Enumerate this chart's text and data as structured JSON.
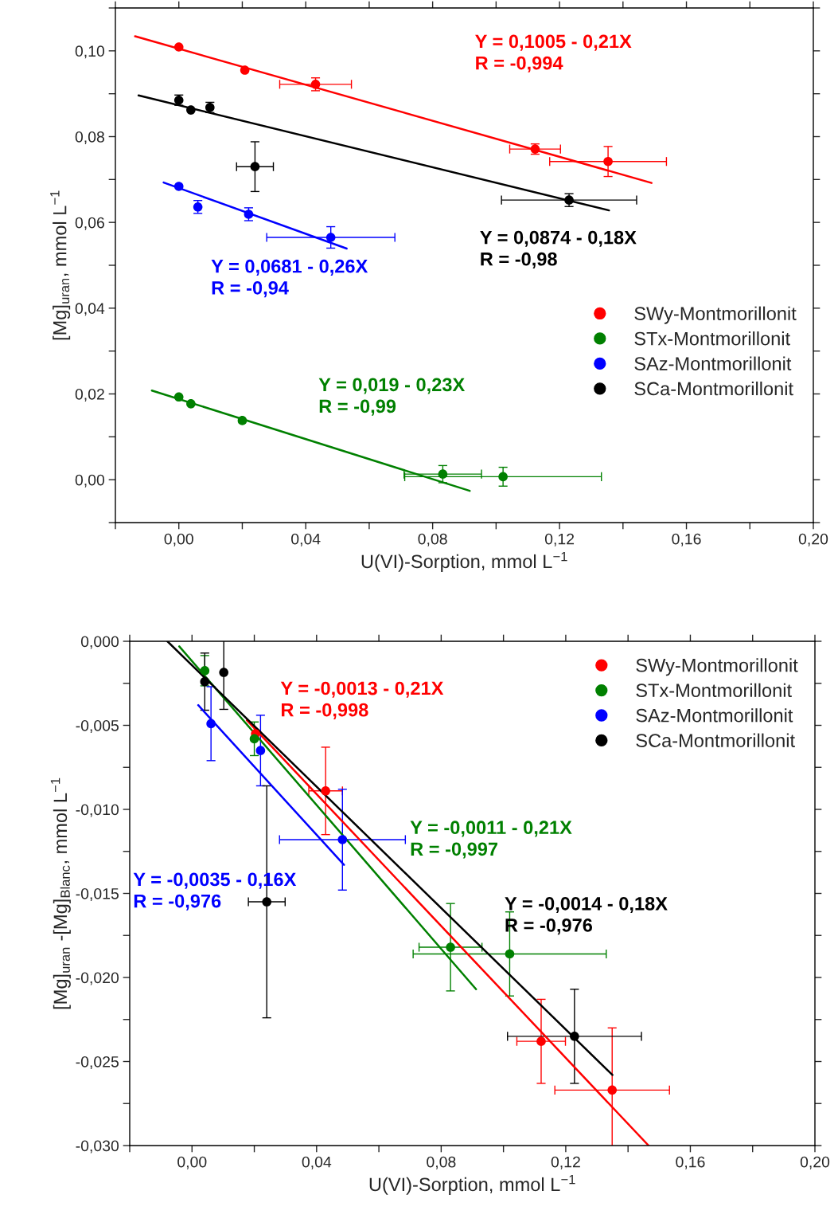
{
  "chart_data": [
    {
      "type": "scatter",
      "xlabel": "U(VI)-Sorption, mmol L$^{−1}$",
      "ylabel": "[Mg]$_{uran}$, mmol L$^{−1}$",
      "xlim": [
        -0.02,
        0.2
      ],
      "ylim": [
        -0.01,
        0.11
      ],
      "xticks": [
        {
          "value": -0.02,
          "label": null
        },
        {
          "value": 0.0,
          "label": "0,00"
        },
        {
          "value": 0.02,
          "label": null
        },
        {
          "value": 0.04,
          "label": "0,04"
        },
        {
          "value": 0.06,
          "label": null
        },
        {
          "value": 0.08,
          "label": "0,08"
        },
        {
          "value": 0.1,
          "label": null
        },
        {
          "value": 0.12,
          "label": "0,12"
        },
        {
          "value": 0.14,
          "label": null
        },
        {
          "value": 0.16,
          "label": "0,16"
        },
        {
          "value": 0.18,
          "label": null
        },
        {
          "value": 0.2,
          "label": "0,20"
        }
      ],
      "yticks": [
        {
          "value": -0.01,
          "label": null
        },
        {
          "value": 0.0,
          "label": "0,00"
        },
        {
          "value": 0.01,
          "label": null
        },
        {
          "value": 0.02,
          "label": "0,02"
        },
        {
          "value": 0.03,
          "label": null
        },
        {
          "value": 0.04,
          "label": "0,04"
        },
        {
          "value": 0.05,
          "label": null
        },
        {
          "value": 0.06,
          "label": "0,06"
        },
        {
          "value": 0.07,
          "label": null
        },
        {
          "value": 0.08,
          "label": "0,08"
        },
        {
          "value": 0.09,
          "label": null
        },
        {
          "value": 0.1,
          "label": "0,10"
        },
        {
          "value": 0.11,
          "label": null
        }
      ],
      "marker": "circle",
      "grid": false,
      "legend": "right",
      "series": [
        {
          "name": "SWy-Montmorillonit",
          "color": "#ff0000",
          "x": [
            0.0,
            0.0208,
            0.0431,
            0.1123,
            0.1353
          ],
          "values": [
            0.1009,
            0.0955,
            0.0922,
            0.0771,
            0.0742
          ],
          "errors": [
            null,
            null,
            0.0015,
            0.0012,
            0.0035
          ],
          "xerrors": [
            null,
            null,
            0.0113,
            0.008,
            0.0184
          ]
        },
        {
          "name": "STx-Montmorillonit",
          "color": "#008000",
          "x": [
            0.0,
            0.0038,
            0.02,
            0.0832,
            0.1022
          ],
          "values": [
            0.0193,
            0.0177,
            0.0138,
            0.0013,
            0.0007
          ],
          "errors": [
            null,
            null,
            null,
            0.002,
            0.0022
          ],
          "xerrors": [
            null,
            null,
            null,
            0.0122,
            0.031
          ]
        },
        {
          "name": "SAz-Montmorillonit",
          "color": "#0000ff",
          "x": [
            0.0,
            0.006,
            0.022,
            0.0479
          ],
          "values": [
            0.0684,
            0.0636,
            0.0619,
            0.0565
          ],
          "errors": [
            null,
            0.0015,
            0.0015,
            0.0025
          ],
          "xerrors": [
            null,
            null,
            null,
            0.0202
          ]
        },
        {
          "name": "SCa-Montmorillonit",
          "color": "#000000",
          "x": [
            0.0,
            0.0038,
            0.0098,
            0.024,
            0.123
          ],
          "values": [
            0.0885,
            0.0862,
            0.0868,
            0.073,
            0.0652
          ],
          "errors": [
            0.0012,
            null,
            0.0012,
            0.0058,
            0.0015
          ],
          "xerrors": [
            null,
            null,
            null,
            0.0058,
            0.0213
          ]
        },
        {
          "type": "line",
          "marker": "none",
          "color": "#ff0000",
          "x": [
            -0.0138,
            0.149
          ],
          "values": [
            0.1034,
            0.0692
          ]
        },
        {
          "type": "line",
          "marker": "none",
          "color": "#008000",
          "x": [
            -0.0085,
            0.0917
          ],
          "values": [
            0.0208,
            -0.0026
          ]
        },
        {
          "type": "line",
          "marker": "none",
          "color": "#0000ff",
          "x": [
            -0.0048,
            0.0529
          ],
          "values": [
            0.0693,
            0.0539
          ]
        },
        {
          "type": "line",
          "marker": "none",
          "color": "#000000",
          "x": [
            -0.0127,
            0.1356
          ],
          "values": [
            0.0896,
            0.0628
          ]
        }
      ],
      "annotations": [
        "Y = 0,1005 - 0,21X\nR = -0,994",
        "Y = 0,019 - 0,23X\nR = -0,99",
        "Y = 0,0681 - 0,26X\nR = -0,94",
        "Y = 0,0874 - 0,18X\nR = -0,98"
      ]
    },
    {
      "type": "scatter",
      "xlabel": "U(VI)-Sorption, mmol L$^{−1}$",
      "ylabel": "[Mg]$_{uran}$ -[Mg]$_{Blanc}$, mmol L$^{−1}$",
      "xlim": [
        -0.02,
        0.2
      ],
      "ylim": [
        -0.03,
        0.0
      ],
      "xticks": [
        {
          "value": -0.02,
          "label": null
        },
        {
          "value": 0.0,
          "label": "0,00"
        },
        {
          "value": 0.02,
          "label": null
        },
        {
          "value": 0.04,
          "label": "0,04"
        },
        {
          "value": 0.06,
          "label": null
        },
        {
          "value": 0.08,
          "label": "0,08"
        },
        {
          "value": 0.1,
          "label": null
        },
        {
          "value": 0.12,
          "label": "0,12"
        },
        {
          "value": 0.14,
          "label": null
        },
        {
          "value": 0.16,
          "label": "0,16"
        },
        {
          "value": 0.18,
          "label": null
        },
        {
          "value": 0.2,
          "label": "0,20"
        }
      ],
      "yticks": [
        {
          "value": -0.03,
          "label": "-0,030"
        },
        {
          "value": -0.0275,
          "label": null
        },
        {
          "value": -0.025,
          "label": "-0,025"
        },
        {
          "value": -0.0225,
          "label": null
        },
        {
          "value": -0.02,
          "label": "-0,020"
        },
        {
          "value": -0.0175,
          "label": null
        },
        {
          "value": -0.015,
          "label": "-0,015"
        },
        {
          "value": -0.0125,
          "label": null
        },
        {
          "value": -0.01,
          "label": "-0,010"
        },
        {
          "value": -0.0075,
          "label": null
        },
        {
          "value": -0.005,
          "label": "-0,005"
        },
        {
          "value": -0.0025,
          "label": null
        },
        {
          "value": 0.0,
          "label": "0,000"
        }
      ],
      "marker": "circle",
      "grid": false,
      "legend": "top right",
      "series": [
        {
          "name": "SWy-Montmorillonit",
          "color": "#ff0000",
          "x": [
            0.0204,
            0.0429,
            0.1121,
            0.1349
          ],
          "values": [
            -0.0055,
            -0.0089,
            -0.0238,
            -0.0267
          ],
          "errors": [
            null,
            0.0026,
            0.0025,
            0.0037
          ],
          "xerrors": [
            null,
            0.0054,
            0.0078,
            0.0184
          ]
        },
        {
          "name": "STx-Montmorillonit",
          "color": "#008000",
          "x": [
            0.0041,
            0.02,
            0.083,
            0.102
          ],
          "values": [
            -0.00175,
            -0.0058,
            -0.0182,
            -0.0186
          ],
          "errors": [
            0.0009,
            0.001,
            0.0026,
            0.0025
          ],
          "xerrors": [
            null,
            null,
            0.0101,
            0.031
          ]
        },
        {
          "name": "SAz-Montmorillonit",
          "color": "#0000ff",
          "x": [
            0.0061,
            0.022,
            0.0483
          ],
          "values": [
            -0.0049,
            -0.0065,
            -0.0118
          ],
          "errors": [
            0.0022,
            0.0021,
            0.003
          ],
          "xerrors": [
            null,
            null,
            0.0202
          ]
        },
        {
          "name": "SCa-Montmorillonit",
          "color": "#000000",
          "x": [
            0.0041,
            0.0102,
            0.024,
            0.1228
          ],
          "values": [
            -0.0024,
            -0.00185,
            -0.0155,
            -0.0235
          ],
          "errors": [
            0.0017,
            0.0022,
            0.0069,
            0.0028
          ],
          "xerrors": [
            null,
            null,
            0.0059,
            0.0215
          ]
        },
        {
          "type": "line",
          "marker": "none",
          "color": "#ff0000",
          "x": [
            0.0176,
            0.1466
          ],
          "values": [
            -0.0047,
            -0.03
          ]
        },
        {
          "type": "line",
          "marker": "none",
          "color": "#008000",
          "x": [
            -0.0041,
            0.0912
          ],
          "values": [
            -0.0003,
            -0.0207
          ]
        },
        {
          "type": "line",
          "marker": "none",
          "color": "#0000ff",
          "x": [
            0.002,
            0.0488
          ],
          "values": [
            -0.0038,
            -0.0133
          ]
        },
        {
          "type": "line",
          "marker": "none",
          "color": "#000000",
          "x": [
            -0.0079,
            0.135
          ],
          "values": [
            0.0,
            -0.0258
          ]
        }
      ],
      "annotations": [
        "Y = -0,0013 - 0,21X\nR = -0,998",
        "Y = -0,0011 - 0,21X\nR = -0,997",
        "Y = -0,0035 - 0,16X\nR = -0,976",
        "Y = -0,0014 - 0,18X\nR = -0,976"
      ]
    }
  ]
}
